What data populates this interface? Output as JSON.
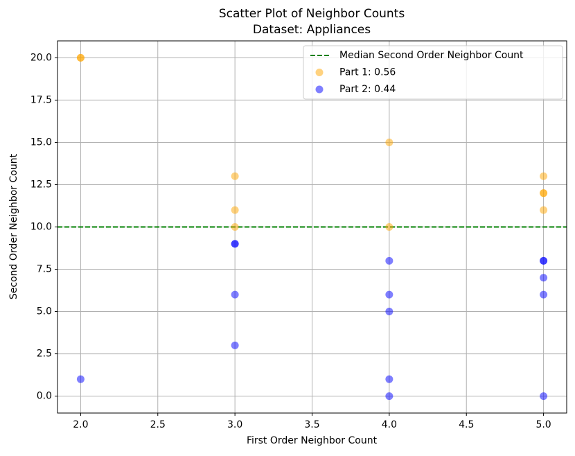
{
  "chart_data": {
    "type": "scatter",
    "title": "Scatter Plot of Neighbor Counts",
    "subtitle": "Dataset: Appliances",
    "x_label": "First Order Neighbor Count",
    "y_label": "Second Order Neighbor Count",
    "xlim": [
      1.85,
      5.15
    ],
    "ylim": [
      -1,
      21
    ],
    "xticks": [
      {
        "value": 2,
        "label": "2.0"
      },
      {
        "value": 2.5,
        "label": "2.5"
      },
      {
        "value": 3,
        "label": "3.0"
      },
      {
        "value": 3.5,
        "label": "3.5"
      },
      {
        "value": 4,
        "label": "4.0"
      },
      {
        "value": 4.5,
        "label": "4.5"
      },
      {
        "value": 5,
        "label": "5.0"
      }
    ],
    "yticks": [
      {
        "value": 0,
        "label": "0.0"
      },
      {
        "value": 2.5,
        "label": "2.5"
      },
      {
        "value": 5,
        "label": "5.0"
      },
      {
        "value": 7.5,
        "label": "7.5"
      },
      {
        "value": 10,
        "label": "10.0"
      },
      {
        "value": 12.5,
        "label": "12.5"
      },
      {
        "value": 15,
        "label": "15.0"
      },
      {
        "value": 17.5,
        "label": "17.5"
      },
      {
        "value": 20,
        "label": "20.0"
      }
    ],
    "grid": true,
    "legend": "upper right",
    "reference_line": {
      "name": "Median Second Order Neighbor Count",
      "value": 10,
      "color": "green"
    },
    "series": [
      {
        "name": "Part 1: 0.56",
        "color": "orange",
        "x": [
          2,
          2,
          3,
          3,
          3,
          4,
          4,
          5,
          5,
          5,
          5
        ],
        "values": [
          20,
          20,
          13,
          11,
          10,
          15,
          10,
          13,
          12,
          12,
          11
        ]
      },
      {
        "name": "Part 2: 0.44",
        "color": "blue",
        "x": [
          2,
          3,
          3,
          3,
          3,
          4,
          4,
          4,
          4,
          4,
          5,
          5,
          5,
          5,
          5
        ],
        "values": [
          1,
          9,
          9,
          6,
          3,
          8,
          6,
          5,
          1,
          0,
          8,
          8,
          7,
          6,
          0
        ]
      }
    ]
  }
}
